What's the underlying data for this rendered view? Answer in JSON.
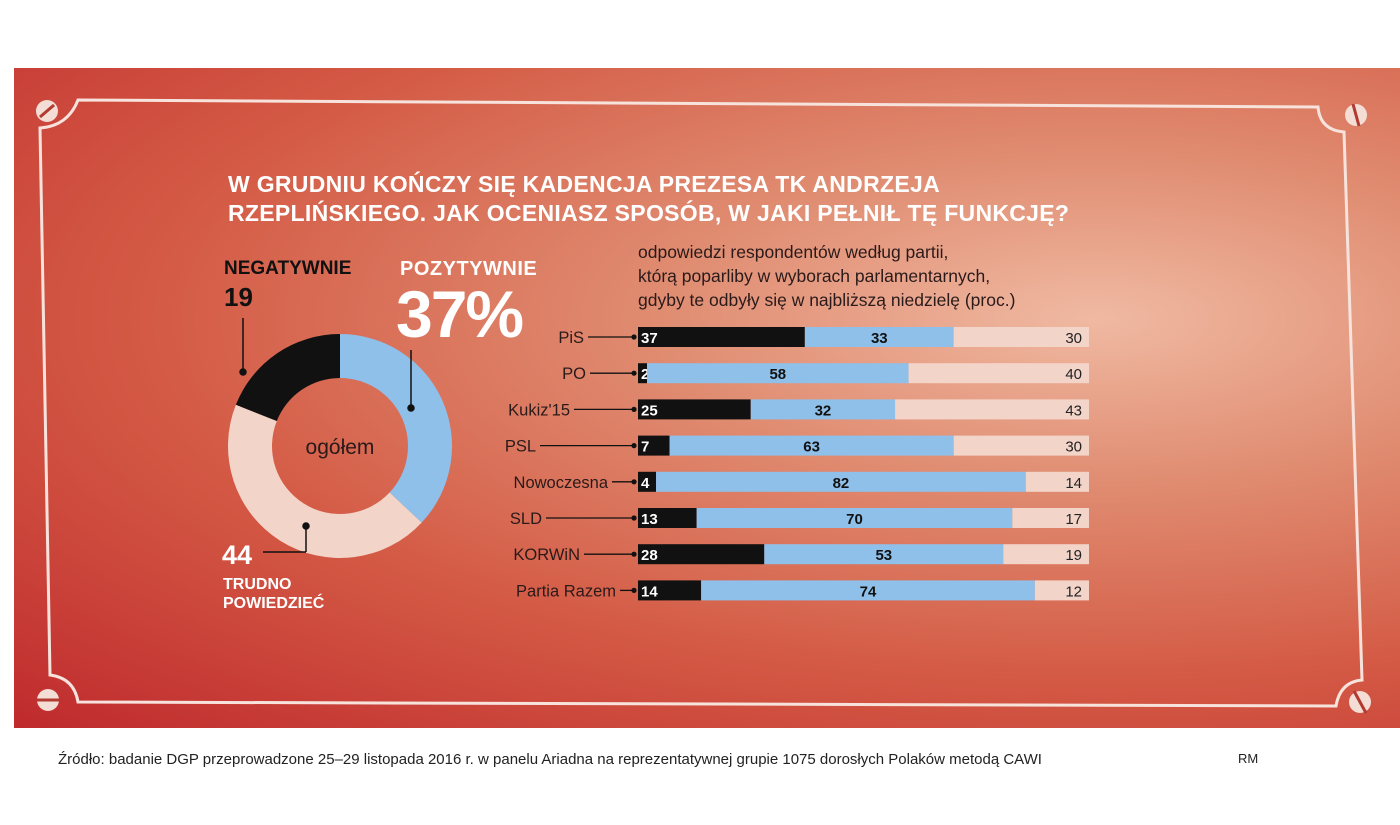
{
  "title_lines": [
    "W GRUDNIU  KOŃCZY SIĘ KADENCJA PREZESA TK ANDRZEJA",
    "RZEPLIŃSKIEGO. JAK OCENIASZ SPOSÓB, W JAKI PEŁNIŁ TĘ FUNKCJĘ?"
  ],
  "subtitle_lines": [
    "odpowiedzi respondentów według partii,",
    "którą poparliby w wyborach parlamentarnych,",
    "gdyby te odbyły się w najbliższą niedzielę (proc.)"
  ],
  "donut": {
    "center_label": "ogółem",
    "negative": {
      "name": "NEGATYWNIE",
      "value_label": "19"
    },
    "positive": {
      "name": "POZYTYWNIE",
      "value_label": "37%"
    },
    "undecided": {
      "name_lines": [
        "TRUDNO",
        "POWIEDZIEĆ"
      ],
      "value_label": "44"
    }
  },
  "colors": {
    "negative": "#111111",
    "positive": "#8fc0ea",
    "undecided": "#f3d4c9",
    "frame": "#f7e3dc"
  },
  "chart_data": [
    {
      "type": "pie",
      "title": "W GRUDNIU  KOŃCZY SIĘ KADENCJA PREZESA TK ANDRZEJA RZEPLIŃSKIEGO. JAK OCENIASZ SPOSÓB, W JAKI PEŁNIŁ TĘ FUNKCJĘ?",
      "center_label": "ogółem",
      "categories": [
        "POZYTYWNIE",
        "TRUDNO POWIEDZIEĆ",
        "NEGATYWNIE"
      ],
      "values": [
        37,
        44,
        19
      ]
    },
    {
      "type": "bar",
      "orientation": "horizontal",
      "stacked": true,
      "title": "odpowiedzi respondentów według partii, którą poparliby w wyborach parlamentarnych, gdyby te odbyły się w najbliższą niedzielę (proc.)",
      "categories": [
        "PiS",
        "PO",
        "Kukiz'15",
        "PSL",
        "Nowoczesna",
        "SLD",
        "KORWiN",
        "Partia Razem"
      ],
      "series": [
        {
          "name": "NEGATYWNIE",
          "color": "#111111",
          "values": [
            37,
            2,
            25,
            7,
            4,
            13,
            28,
            14
          ]
        },
        {
          "name": "POZYTYWNIE",
          "color": "#8fc0ea",
          "values": [
            33,
            58,
            32,
            63,
            82,
            70,
            53,
            74
          ]
        },
        {
          "name": "TRUDNO POWIEDZIEĆ",
          "color": "#f3d4c9",
          "values": [
            30,
            40,
            43,
            30,
            14,
            17,
            19,
            12
          ]
        }
      ],
      "xlim": [
        0,
        100
      ]
    }
  ],
  "source": "Źródło: badanie DGP przeprowadzone 25–29 listopada 2016 r. w panelu Ariadna na reprezentatywnej grupie 1075 dorosłych Polaków metodą CAWI",
  "author": "RM"
}
